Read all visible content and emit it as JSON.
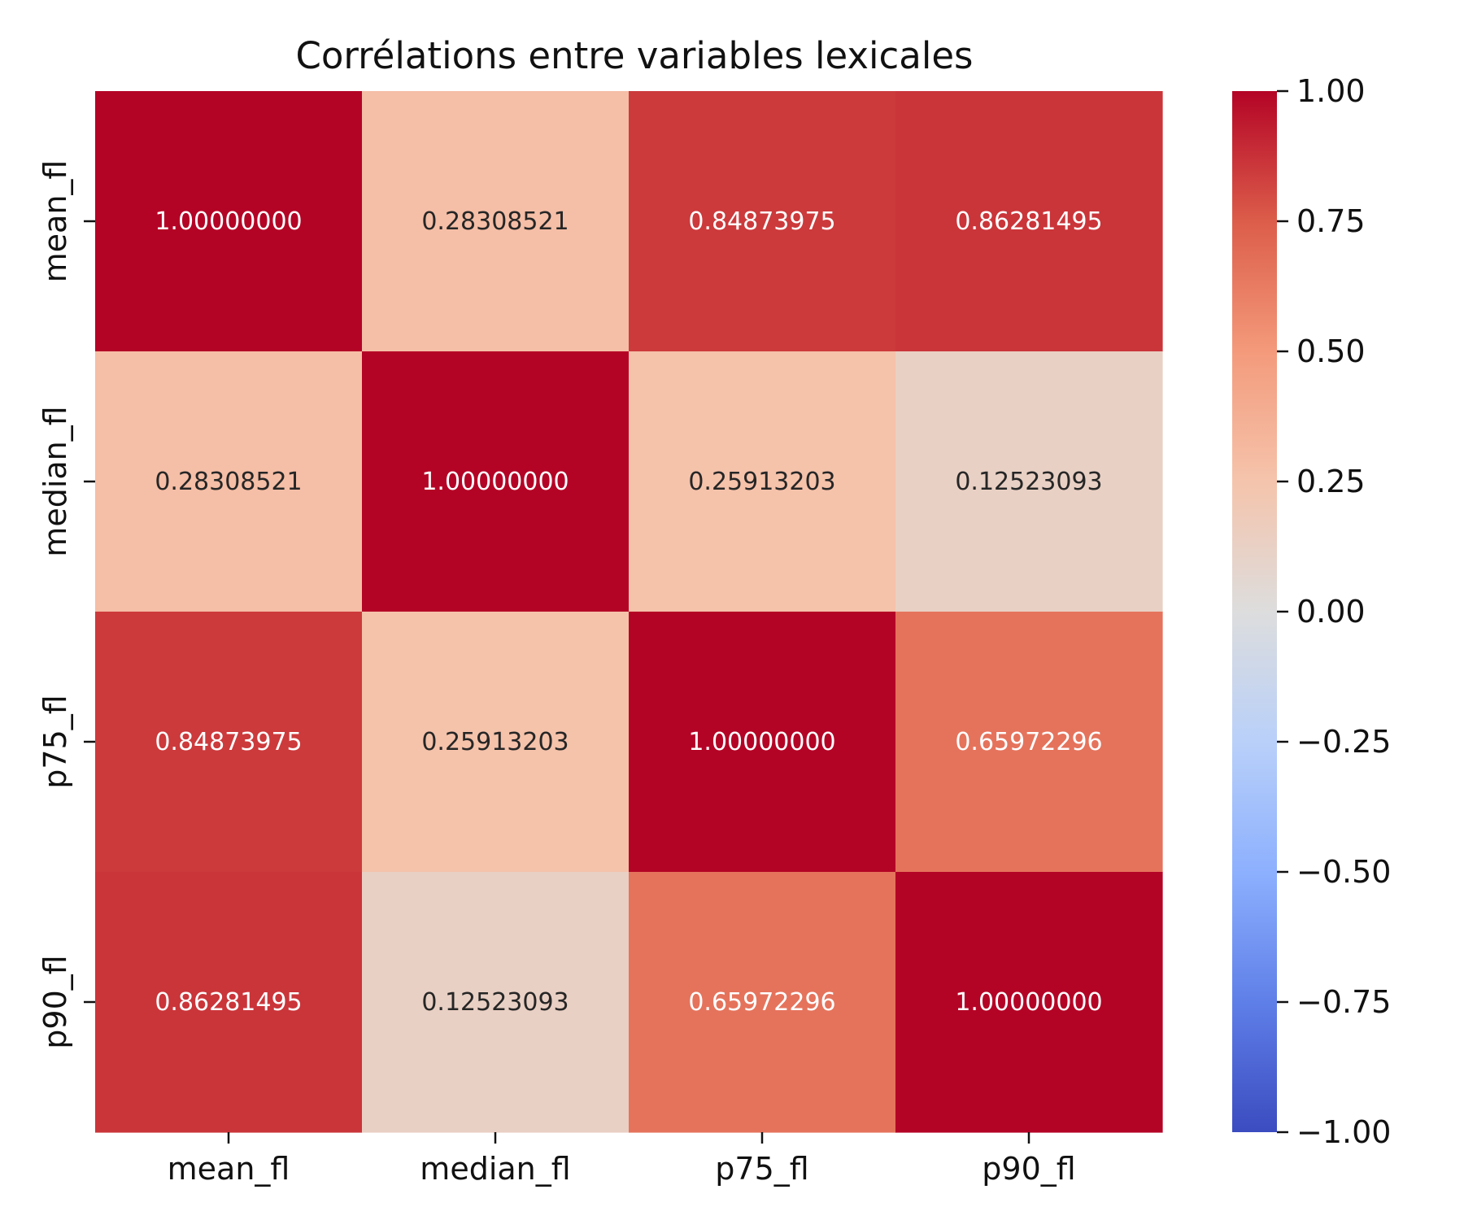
{
  "chart_data": {
    "type": "heatmap",
    "title": "Corrélations entre variables lexicales",
    "xlabel": "",
    "ylabel": "",
    "x_categories": [
      "mean_fl",
      "median_fl",
      "p75_fl",
      "p90_fl"
    ],
    "y_categories": [
      "mean_fl",
      "median_fl",
      "p75_fl",
      "p90_fl"
    ],
    "values": [
      [
        1.0,
        0.28308521,
        0.84873975,
        0.86281495
      ],
      [
        0.28308521,
        1.0,
        0.25913203,
        0.12523093
      ],
      [
        0.84873975,
        0.25913203,
        1.0,
        0.65972296
      ],
      [
        0.86281495,
        0.12523093,
        0.65972296,
        1.0
      ]
    ],
    "cell_labels": [
      [
        "1.00000000",
        "0.28308521",
        "0.84873975",
        "0.86281495"
      ],
      [
        "0.28308521",
        "1.00000000",
        "0.25913203",
        "0.12523093"
      ],
      [
        "0.84873975",
        "0.25913203",
        "1.00000000",
        "0.65972296"
      ],
      [
        "0.86281495",
        "0.12523093",
        "0.65972296",
        "1.00000000"
      ]
    ],
    "colorbar": {
      "range": [
        -1,
        1
      ],
      "tick_values": [
        1.0,
        0.75,
        0.5,
        0.25,
        0.0,
        -0.25,
        -0.5,
        -0.75,
        -1.0
      ],
      "tick_labels": [
        "1.00",
        "0.75",
        "0.50",
        "0.25",
        "0.00",
        "−0.25",
        "−0.50",
        "−0.75",
        "−1.00"
      ],
      "colormap": "coolwarm",
      "stops": [
        [
          0.0,
          "#3b4cc0"
        ],
        [
          0.125,
          "#5f7fe8"
        ],
        [
          0.25,
          "#8db0fe"
        ],
        [
          0.375,
          "#b9d0f9"
        ],
        [
          0.5,
          "#dddddd"
        ],
        [
          0.625,
          "#f5c4ac"
        ],
        [
          0.75,
          "#f49a7b"
        ],
        [
          0.875,
          "#dc5d4a"
        ],
        [
          1.0,
          "#b40426"
        ]
      ]
    },
    "annotation_color_light": "#ffffff",
    "annotation_color_dark": "#262626",
    "grid": false,
    "legend": "none"
  }
}
